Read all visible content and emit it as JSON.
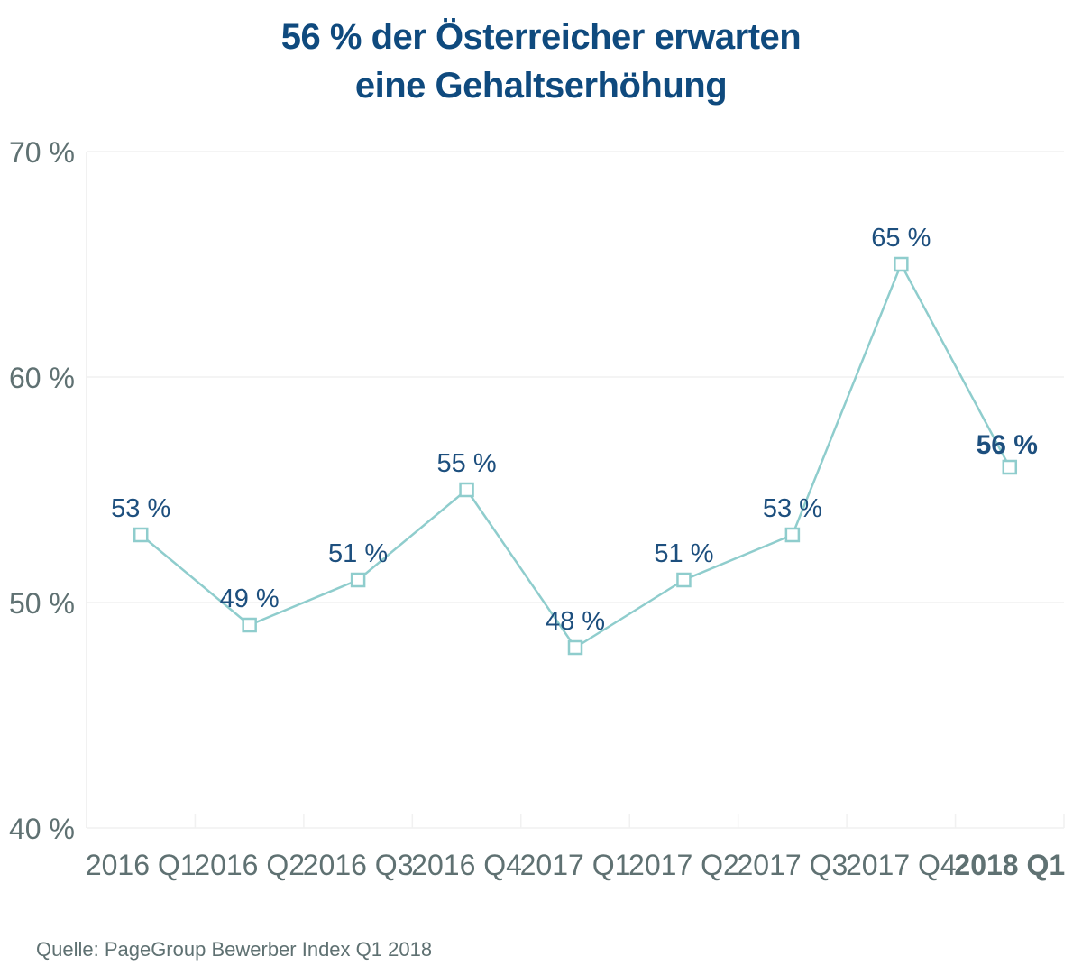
{
  "title_line1": "56 % der Österreicher erwarten",
  "title_line2": "eine Gehaltserhöhung",
  "source": "Quelle: PageGroup Bewerber Index Q1 2018",
  "colors": {
    "title": "#0f4a7e",
    "line": "#8fcdcd",
    "data_label": "#1d4f7e",
    "axis_text": "#5f7172",
    "grid": "#f1f1f1"
  },
  "chart_data": {
    "type": "line",
    "categories": [
      "2016 Q1",
      "2016 Q2",
      "2016 Q3",
      "2016 Q4",
      "2017 Q1",
      "2017 Q2",
      "2017 Q3",
      "2017 Q4",
      "2018 Q1"
    ],
    "series": [
      {
        "values": [
          53,
          49,
          51,
          55,
          48,
          51,
          53,
          65,
          56
        ]
      }
    ],
    "data_labels": [
      "53 %",
      "49 %",
      "51 %",
      "55 %",
      "48 %",
      "51 %",
      "53 %",
      "65 %",
      "56 %"
    ],
    "highlight_index": 8,
    "ylim": [
      40,
      70
    ],
    "yticks": [
      40,
      50,
      60,
      70
    ],
    "ytick_labels": [
      "40 %",
      "50 %",
      "60 %",
      "70 %"
    ],
    "marker": "hollow-square",
    "grid": true,
    "title": "56 % der Österreicher erwarten eine Gehaltserhöhung"
  }
}
